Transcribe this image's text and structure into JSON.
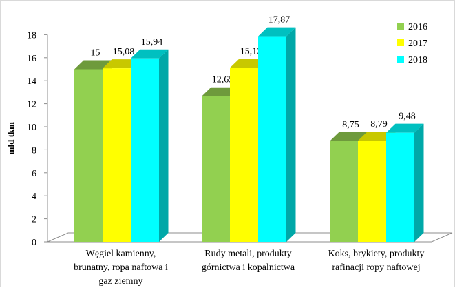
{
  "chart_data": {
    "type": "bar",
    "title": "",
    "ylabel": "mld tkm",
    "xlabel": "",
    "ylim": [
      0,
      18
    ],
    "ytick_step": 2,
    "yticks": [
      "0",
      "2",
      "4",
      "6",
      "8",
      "10",
      "12",
      "14",
      "16",
      "18"
    ],
    "grid": false,
    "legend_position": "top-right",
    "categories": [
      [
        "Węgiel kamienny,",
        "brunatny, ropa naftowa i",
        "gaz ziemny"
      ],
      [
        "Rudy metali, produkty",
        "górnictwa i kopalnictwa"
      ],
      [
        "Koks, brykiety, produkty",
        "rafinacji ropy naftowej"
      ]
    ],
    "series": [
      {
        "name": "2016",
        "values": [
          15,
          12.65,
          8.75
        ],
        "labels": [
          "15",
          "12,65",
          "8,75"
        ],
        "color": "#92d050",
        "top": "#6e9a3c",
        "side": "#76a840"
      },
      {
        "name": "2017",
        "values": [
          15.08,
          15.13,
          8.79
        ],
        "labels": [
          "15,08",
          "15,13",
          "8,79"
        ],
        "color": "#ffff00",
        "top": "#c8c800",
        "side": "#d6d600"
      },
      {
        "name": "2018",
        "values": [
          15.94,
          17.87,
          9.48
        ],
        "labels": [
          "15,94",
          "17,87",
          "9,48"
        ],
        "color": "#00ffff",
        "top": "#00c0c0",
        "side": "#00a8a8"
      }
    ]
  }
}
